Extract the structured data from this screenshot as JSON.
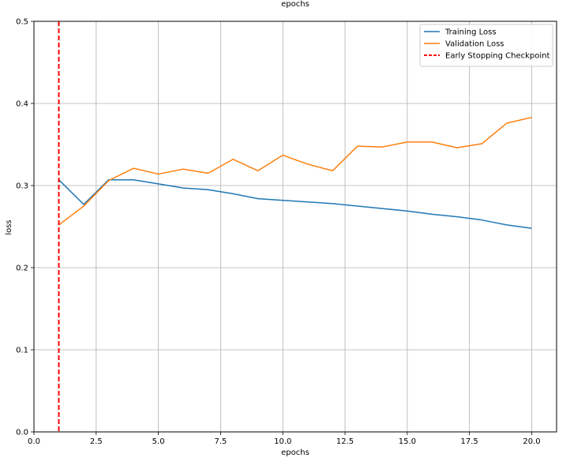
{
  "chart_data": {
    "type": "line",
    "title": "epochs",
    "xlabel": "epochs",
    "ylabel": "loss",
    "xlim": [
      0,
      21
    ],
    "ylim": [
      0,
      0.5
    ],
    "grid": true,
    "legend_position": "top-right",
    "x": [
      1,
      2,
      3,
      4,
      5,
      6,
      7,
      8,
      9,
      10,
      11,
      12,
      13,
      14,
      15,
      16,
      17,
      18,
      19,
      20
    ],
    "x_ticks": [
      "0.0",
      "2.5",
      "5.0",
      "7.5",
      "10.0",
      "12.5",
      "15.0",
      "17.5",
      "20.0"
    ],
    "x_tick_values": [
      0,
      2.5,
      5,
      7.5,
      10,
      12.5,
      15,
      17.5,
      20
    ],
    "y_ticks": [
      "0.0",
      "0.1",
      "0.2",
      "0.3",
      "0.4",
      "0.5"
    ],
    "y_tick_values": [
      0,
      0.1,
      0.2,
      0.3,
      0.4,
      0.5
    ],
    "series": [
      {
        "name": "Training Loss",
        "color": "#1f77b4",
        "values": [
          0.307,
          0.277,
          0.307,
          0.307,
          0.302,
          0.297,
          0.295,
          0.29,
          0.284,
          0.282,
          0.28,
          0.278,
          0.275,
          0.272,
          0.269,
          0.265,
          0.262,
          0.258,
          0.252,
          0.248
        ]
      },
      {
        "name": "Validation Loss",
        "color": "#ff7f0e",
        "values": [
          0.252,
          0.275,
          0.306,
          0.321,
          0.314,
          0.32,
          0.315,
          0.332,
          0.318,
          0.337,
          0.326,
          0.318,
          0.348,
          0.347,
          0.353,
          0.353,
          0.346,
          0.351,
          0.376,
          0.383
        ]
      }
    ],
    "vlines": [
      {
        "name": "Early Stopping Checkpoint",
        "x": 1,
        "color": "#ff0000",
        "style": "dashed"
      }
    ]
  }
}
